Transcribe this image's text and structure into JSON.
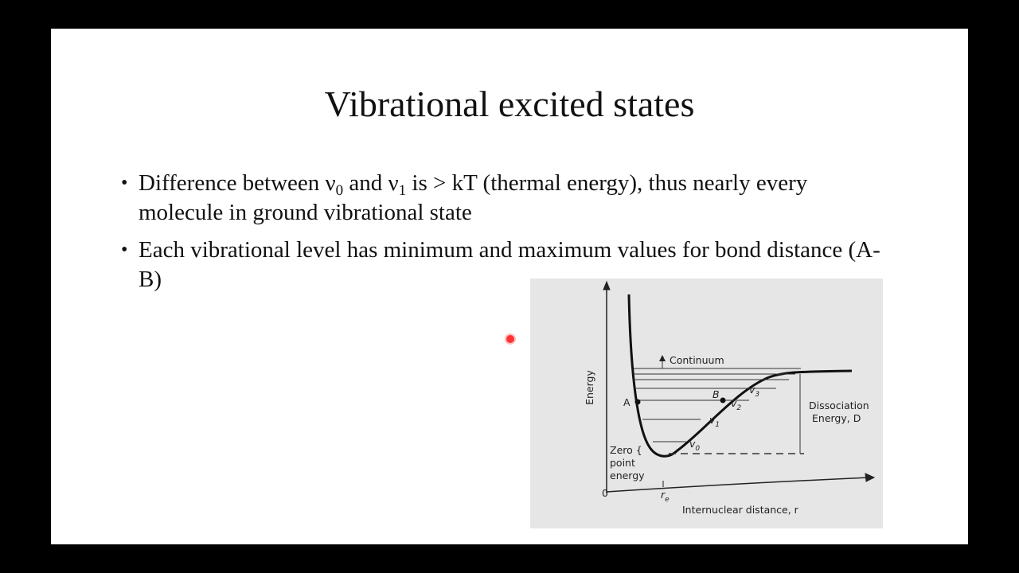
{
  "slide": {
    "title": "Vibrational excited states",
    "bullets": [
      {
        "parts": [
          {
            "text": "Difference between ν"
          },
          {
            "sub": "0"
          },
          {
            "text": " and ν"
          },
          {
            "sub": "1"
          },
          {
            "text": " is > kT (thermal energy), thus nearly every molecule in ground vibrational state"
          }
        ]
      },
      {
        "parts": [
          {
            "text": "Each vibrational level has minimum and maximum values for bond distance (A-B)"
          }
        ]
      }
    ]
  },
  "figure": {
    "continuum": "Continuum",
    "y_label": "Energy",
    "point_a": "A",
    "point_b": "B",
    "levels": [
      {
        "symbol": "v",
        "sub": "0"
      },
      {
        "symbol": "v",
        "sub": "1"
      },
      {
        "symbol": "v",
        "sub": "2"
      },
      {
        "symbol": "v",
        "sub": "3"
      }
    ],
    "dissociation": [
      "Dissociation",
      "Energy, D"
    ],
    "zero_point": [
      "Zero {",
      "point",
      "energy"
    ],
    "origin": "0",
    "re": {
      "symbol": "r",
      "sub": "e"
    },
    "x_label": "Internuclear distance, r"
  }
}
